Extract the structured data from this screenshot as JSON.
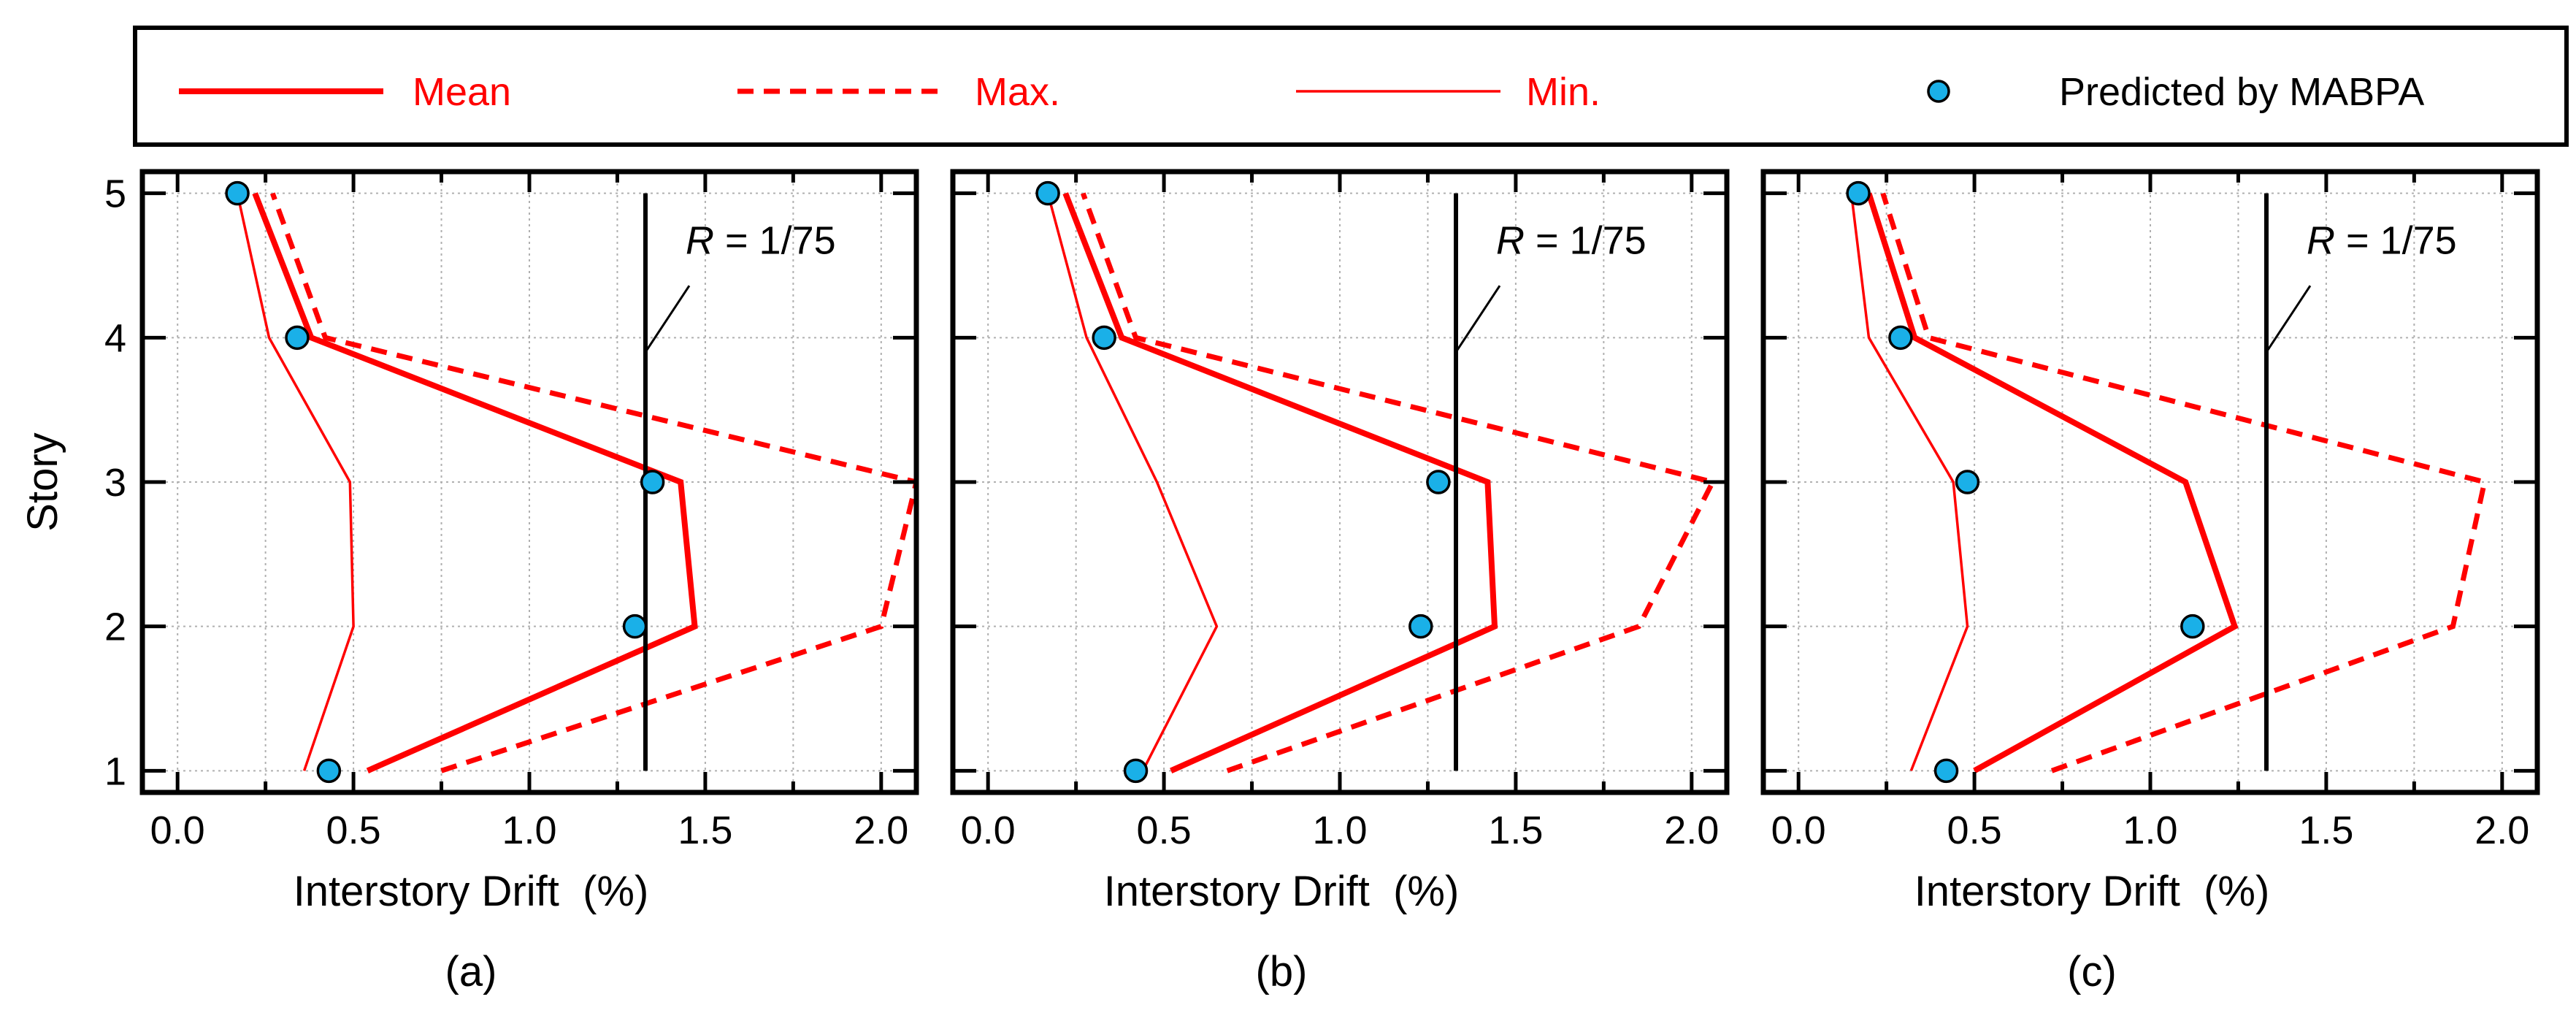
{
  "colors": {
    "series": "#ff0000",
    "marker_fill": "#1ab0e8",
    "marker_stroke": "#000000",
    "reference_line": "#000000",
    "grid": "#b0b0b0",
    "axes": "#000000"
  },
  "legend": {
    "entries": [
      {
        "label": "Mean",
        "style": "thick-solid"
      },
      {
        "label": "Max.",
        "style": "dashed"
      },
      {
        "label": "Min.",
        "style": "thin-solid"
      },
      {
        "label": "Predicted by MABPA",
        "style": "marker"
      }
    ]
  },
  "chart_data": [
    {
      "type": "line",
      "panel_label": "(a)",
      "xlabel": "Interstory Drift  (%)",
      "ylabel": "Story",
      "xlim": [
        -0.1,
        2.1
      ],
      "ylim": [
        0.85,
        5.15
      ],
      "xticks": [
        "0.0",
        "0.5",
        "1.0",
        "1.5",
        "2.0"
      ],
      "yticks": [
        "1",
        "2",
        "3",
        "4",
        "5"
      ],
      "grid": true,
      "reference": {
        "label_italic": "R",
        "label_rest": " = 1/75",
        "x": 1.33
      },
      "stories": [
        1,
        2,
        3,
        4,
        5
      ],
      "series": [
        {
          "name": "Mean",
          "x": [
            0.54,
            1.47,
            1.43,
            0.38,
            0.22
          ]
        },
        {
          "name": "Max.",
          "x": [
            0.75,
            2.0,
            2.1,
            0.42,
            0.27
          ]
        },
        {
          "name": "Min.",
          "x": [
            0.36,
            0.5,
            0.49,
            0.26,
            0.17
          ]
        },
        {
          "name": "Predicted by MABPA",
          "x": [
            0.43,
            1.3,
            1.35,
            0.34,
            0.17
          ]
        }
      ]
    },
    {
      "type": "line",
      "panel_label": "(b)",
      "xlabel": "Interstory Drift  (%)",
      "ylabel": "",
      "xlim": [
        -0.1,
        2.1
      ],
      "ylim": [
        0.85,
        5.15
      ],
      "xticks": [
        "0.0",
        "0.5",
        "1.0",
        "1.5",
        "2.0"
      ],
      "yticks": [],
      "grid": true,
      "reference": {
        "label_italic": "R",
        "label_rest": " = 1/75",
        "x": 1.33
      },
      "stories": [
        1,
        2,
        3,
        4,
        5
      ],
      "series": [
        {
          "name": "Mean",
          "x": [
            0.52,
            1.44,
            1.42,
            0.38,
            0.22
          ]
        },
        {
          "name": "Max.",
          "x": [
            0.68,
            1.85,
            2.06,
            0.42,
            0.27
          ]
        },
        {
          "name": "Min.",
          "x": [
            0.44,
            0.65,
            0.48,
            0.28,
            0.17
          ]
        },
        {
          "name": "Predicted by MABPA",
          "x": [
            0.42,
            1.23,
            1.28,
            0.33,
            0.17
          ]
        }
      ]
    },
    {
      "type": "line",
      "panel_label": "(c)",
      "xlabel": "Interstory Drift  (%)",
      "ylabel": "",
      "xlim": [
        -0.1,
        2.1
      ],
      "ylim": [
        0.85,
        5.15
      ],
      "xticks": [
        "0.0",
        "0.5",
        "1.0",
        "1.5",
        "2.0"
      ],
      "yticks": [],
      "grid": true,
      "reference": {
        "label_italic": "R",
        "label_rest": " = 1/75",
        "x": 1.33
      },
      "stories": [
        1,
        2,
        3,
        4,
        5
      ],
      "series": [
        {
          "name": "Mean",
          "x": [
            0.5,
            1.24,
            1.1,
            0.33,
            0.2
          ]
        },
        {
          "name": "Max.",
          "x": [
            0.72,
            1.86,
            1.95,
            0.37,
            0.24
          ]
        },
        {
          "name": "Min.",
          "x": [
            0.32,
            0.48,
            0.44,
            0.2,
            0.15
          ]
        },
        {
          "name": "Predicted by MABPA",
          "x": [
            0.42,
            1.12,
            0.48,
            0.29,
            0.17
          ]
        }
      ]
    }
  ]
}
